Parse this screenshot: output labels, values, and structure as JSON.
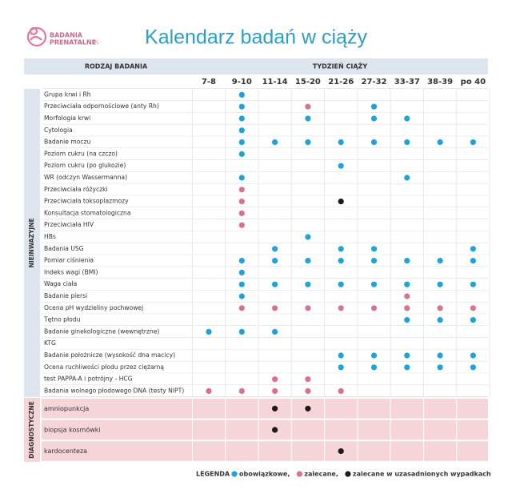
{
  "logo": {
    "line1": "BADANIA",
    "line2": "PRENATALNE",
    "suffix": ".PL"
  },
  "title": "Kalendarz badań w ciąży",
  "table": {
    "headers": {
      "type": "RODZAJ BADANIA",
      "weeks": "TYDZIEŃ CIĄŻY"
    },
    "weeks": [
      "7-8",
      "9-10",
      "11-14",
      "15-20",
      "21-26",
      "27-32",
      "33-37",
      "38-39",
      "po 40"
    ],
    "groups": [
      {
        "label": "NIEINWAZYJNE",
        "rows": [
          {
            "name": "Grupa krwi i Rh",
            "marks": [
              null,
              "#1fa3d8",
              null,
              null,
              null,
              null,
              null,
              null,
              null
            ]
          },
          {
            "name": "Przeciwciała odpornościowe (anty Rh)",
            "marks": [
              null,
              "#1fa3d8",
              null,
              "#d9728b",
              null,
              "#1fa3d8",
              null,
              null,
              null
            ]
          },
          {
            "name": "Morfologia krwi",
            "marks": [
              null,
              "#1fa3d8",
              null,
              "#1fa3d8",
              null,
              "#1fa3d8",
              "#1fa3d8",
              null,
              null
            ]
          },
          {
            "name": "Cytologia",
            "marks": [
              null,
              "#1fa3d8",
              null,
              null,
              null,
              null,
              null,
              null,
              null
            ]
          },
          {
            "name": "Badanie moczu",
            "marks": [
              null,
              "#1fa3d8",
              "#1fa3d8",
              "#1fa3d8",
              "#1fa3d8",
              "#1fa3d8",
              "#1fa3d8",
              "#1fa3d8",
              "#1fa3d8"
            ]
          },
          {
            "name": "Poziom cukru (na czczo)",
            "marks": [
              null,
              "#1fa3d8",
              null,
              null,
              null,
              null,
              null,
              null,
              null
            ]
          },
          {
            "name": "Poziom cukru (po glukozie)",
            "marks": [
              null,
              null,
              null,
              null,
              "#1fa3d8",
              null,
              null,
              null,
              null
            ]
          },
          {
            "name": "WR (odczyn Wassermanna)",
            "marks": [
              null,
              "#1fa3d8",
              null,
              null,
              null,
              null,
              "#1fa3d8",
              null,
              null
            ]
          },
          {
            "name": "Przeciwciała różyczki",
            "marks": [
              null,
              "#d9728b",
              null,
              null,
              null,
              null,
              null,
              null,
              null
            ]
          },
          {
            "name": "Przeciwciała toksoplazmozy",
            "marks": [
              null,
              "#d9728b",
              null,
              null,
              "#1a1a1a",
              null,
              null,
              null,
              null
            ]
          },
          {
            "name": "Konsultacja stomatologiczna",
            "marks": [
              null,
              "#d9728b",
              null,
              null,
              null,
              null,
              null,
              null,
              null
            ]
          },
          {
            "name": "Przeciwciała HIV",
            "marks": [
              null,
              "#d9728b",
              null,
              null,
              null,
              null,
              null,
              null,
              null
            ]
          },
          {
            "name": "HBs",
            "marks": [
              null,
              null,
              null,
              "#1fa3d8",
              null,
              null,
              null,
              null,
              null
            ]
          },
          {
            "name": "Badania USG",
            "marks": [
              null,
              null,
              "#1fa3d8",
              null,
              "#1fa3d8",
              "#1fa3d8",
              null,
              null,
              "#1fa3d8"
            ]
          },
          {
            "name": "Pomiar ciśnienia",
            "marks": [
              null,
              "#1fa3d8",
              "#1fa3d8",
              "#1fa3d8",
              "#1fa3d8",
              "#1fa3d8",
              "#1fa3d8",
              "#1fa3d8",
              "#1fa3d8"
            ]
          },
          {
            "name": "Indeks wagi (BMI)",
            "marks": [
              null,
              "#1fa3d8",
              null,
              null,
              null,
              null,
              null,
              null,
              null
            ]
          },
          {
            "name": "Waga ciała",
            "marks": [
              null,
              "#1fa3d8",
              "#1fa3d8",
              "#1fa3d8",
              "#1fa3d8",
              "#1fa3d8",
              "#1fa3d8",
              "#1fa3d8",
              "#1fa3d8"
            ]
          },
          {
            "name": "Badanie piersi",
            "marks": [
              null,
              "#1fa3d8",
              null,
              null,
              null,
              null,
              "#d9728b",
              null,
              null
            ]
          },
          {
            "name": "Ocena pH wydzieliny pochwowej",
            "marks": [
              null,
              "#d9728b",
              "#d9728b",
              "#d9728b",
              "#d9728b",
              "#d9728b",
              "#d9728b",
              "#d9728b",
              "#d9728b"
            ]
          },
          {
            "name": "Tętno płodu",
            "marks": [
              null,
              null,
              null,
              null,
              null,
              null,
              "#1fa3d8",
              "#1fa3d8",
              "#1fa3d8"
            ]
          },
          {
            "name": "Badanie ginekologiczne (wewnętrzne)",
            "marks": [
              "#1fa3d8",
              "#1fa3d8",
              "#1fa3d8",
              null,
              null,
              null,
              null,
              null,
              null
            ]
          },
          {
            "name": "KTG",
            "marks": [
              null,
              null,
              null,
              null,
              null,
              null,
              null,
              null,
              null
            ]
          },
          {
            "name": "Badanie położnicze (wysokość dna macicy)",
            "marks": [
              null,
              null,
              null,
              null,
              "#1fa3d8",
              "#1fa3d8",
              "#1fa3d8",
              "#1fa3d8",
              "#1fa3d8"
            ]
          },
          {
            "name": "Ocena ruchliwości płodu przez ciężarną",
            "marks": [
              null,
              null,
              null,
              null,
              "#1fa3d8",
              "#1fa3d8",
              "#1fa3d8",
              "#1fa3d8",
              "#1fa3d8"
            ]
          },
          {
            "name": "test PAPPA-A i potrójny - HCG",
            "marks": [
              null,
              null,
              "#d9728b",
              "#d9728b",
              null,
              null,
              null,
              null,
              null
            ]
          },
          {
            "name": "Badania wolnego płodowego DNA (testy NIPT)",
            "marks": [
              "#d9728b",
              "#d9728b",
              "#d9728b",
              "#d9728b",
              "#d9728b",
              null,
              null,
              null,
              null
            ]
          }
        ]
      },
      {
        "label": "DIAGNOSTYCZNE",
        "rows": [
          {
            "name": "amniopunkcja",
            "marks": [
              null,
              null,
              "#1a1a1a",
              "#1a1a1a",
              null,
              null,
              null,
              null,
              null
            ]
          },
          {
            "name": "biopsja kosmówki",
            "marks": [
              null,
              null,
              "#1a1a1a",
              null,
              null,
              null,
              null,
              null,
              null
            ]
          },
          {
            "name": "kardocenteza",
            "marks": [
              null,
              null,
              null,
              null,
              "#1a1a1a",
              null,
              null,
              null,
              null
            ]
          }
        ]
      }
    ]
  },
  "legend": {
    "label": "LEGENDA -",
    "items": [
      {
        "color": "#1fa3d8",
        "label": "obowiązkowe,"
      },
      {
        "color": "#d9728b",
        "label": "zalecane,"
      },
      {
        "color": "#1a1a1a",
        "label": "zalecane w uzasadnionych wypadkach"
      }
    ]
  }
}
